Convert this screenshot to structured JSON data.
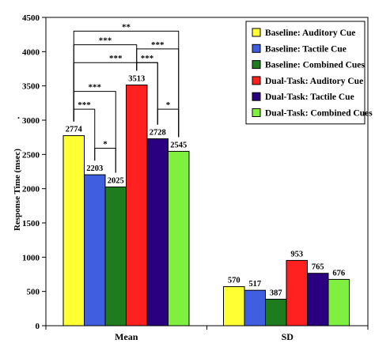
{
  "chart_data": {
    "type": "bar",
    "title": "",
    "ylabel": "Response Time (msec)",
    "xlabel": "",
    "ylim": [
      0,
      4500
    ],
    "yticks": [
      "0",
      "500",
      "1000",
      "1500",
      "2000",
      "2500",
      "3000",
      "3500",
      "4000",
      "4500"
    ],
    "grid": false,
    "legend_position": "top-right",
    "categories": [
      "Mean",
      "SD"
    ],
    "series": [
      {
        "name": "Baseline: Auditory Cue",
        "color": "#FFFF33",
        "values": [
          2774,
          570
        ],
        "labels": [
          "2774",
          "570"
        ]
      },
      {
        "name": "Baseline: Tactile Cue",
        "color": "#3F5FE0",
        "values": [
          2203,
          517
        ],
        "labels": [
          "2203",
          "517"
        ]
      },
      {
        "name": "Baseline: Combined Cues",
        "color": "#1E7B1E",
        "values": [
          2025,
          387
        ],
        "labels": [
          "2025",
          "387"
        ]
      },
      {
        "name": "Dual-Task: Auditory Cue",
        "color": "#FF2020",
        "values": [
          3513,
          953
        ],
        "labels": [
          "3513",
          "953"
        ]
      },
      {
        "name": "Dual-Task: Tactile Cue",
        "color": "#2A0080",
        "values": [
          2728,
          765
        ],
        "labels": [
          "2728",
          "765"
        ]
      },
      {
        "name": "Dual-Task: Combined Cues",
        "color": "#80F040",
        "values": [
          2545,
          676
        ],
        "labels": [
          "2545",
          "676"
        ]
      }
    ],
    "annotations": {
      "stray_mark": ".",
      "significance": [
        {
          "from": 0,
          "to": 5,
          "y": 4300,
          "label": "**"
        },
        {
          "from": 0,
          "to": 3,
          "y": 4100,
          "label": "***"
        },
        {
          "from": 3,
          "to": 5,
          "y": 4040,
          "label": "***"
        },
        {
          "from": 0,
          "to": 4,
          "y": 3840,
          "label": "***"
        },
        {
          "from": 3,
          "to": 4,
          "y": 3840,
          "label": "***"
        },
        {
          "from": 0,
          "to": 2,
          "y": 3420,
          "label": "***"
        },
        {
          "from": 0,
          "to": 1,
          "y": 3160,
          "label": "***"
        },
        {
          "from": 4,
          "to": 5,
          "y": 3160,
          "label": "*"
        },
        {
          "from": 1,
          "to": 2,
          "y": 2590,
          "label": "*"
        }
      ]
    }
  }
}
